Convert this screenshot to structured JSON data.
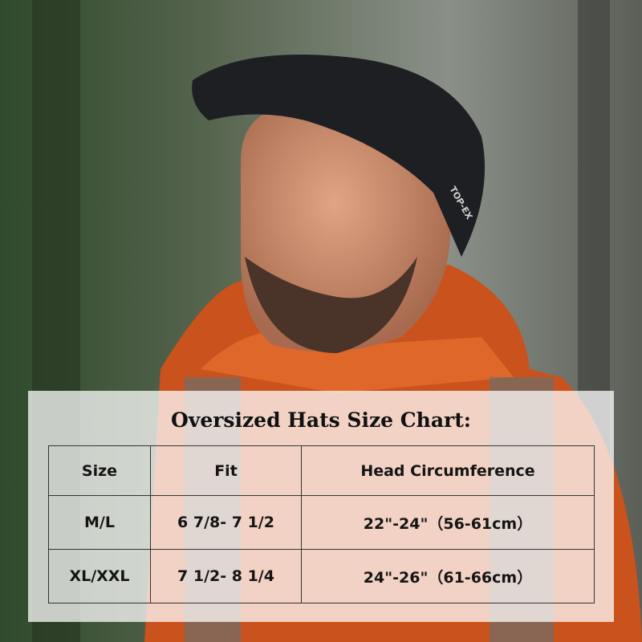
{
  "hat_logo": "TOP-EX",
  "title": "Oversized Hats Size Chart:",
  "table": {
    "header": [
      "Size",
      "Fit",
      "Head Circumference"
    ],
    "rows": [
      [
        "M/L",
        "6 7/8- 7 1/2",
        "22\"-24\"（56-61cm）"
      ],
      [
        "XL/XXL",
        "7 1/2- 8 1/4",
        "24\"-26\"（61-66cm）"
      ]
    ]
  }
}
